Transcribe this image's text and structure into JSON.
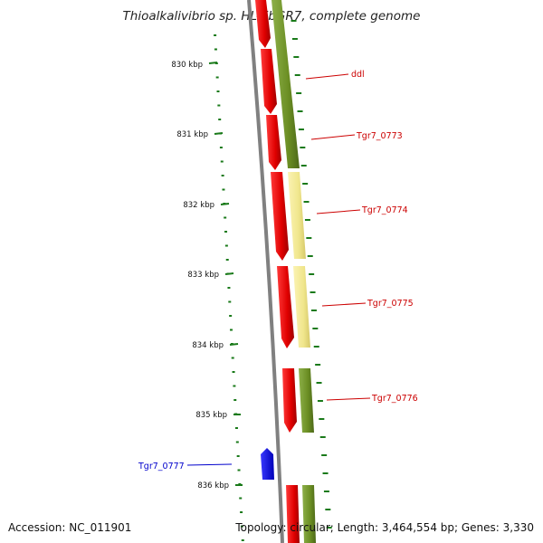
{
  "title": "Thioalkalivibrio sp. HL-EbGR7, complete genome",
  "footer": {
    "accession": "Accession: NC_011901",
    "summary": "Topology: circular; Length: 3,464,554 bp; Genes: 3,330"
  },
  "ticks": [
    "830 kbp",
    "831 kbp",
    "832 kbp",
    "833 kbp",
    "834 kbp",
    "835 kbp",
    "836 kbp"
  ],
  "gene_labels": [
    {
      "name": "ddl",
      "color": "#cc0000"
    },
    {
      "name": "Tgr7_0773",
      "color": "#cc0000"
    },
    {
      "name": "Tgr7_0774",
      "color": "#cc0000"
    },
    {
      "name": "Tgr7_0775",
      "color": "#cc0000"
    },
    {
      "name": "Tgr7_0776",
      "color": "#cc0000"
    },
    {
      "name": "Tgr7_0777",
      "color": "#0000cc"
    }
  ],
  "colors": {
    "forward_gene": "#ee0000",
    "reverse_gene": "#0000ee",
    "cog_green": "#6b8e23",
    "cog_yellow": "#f0e68c",
    "backbone": "#808080",
    "ticks": "#1a7a1a"
  }
}
